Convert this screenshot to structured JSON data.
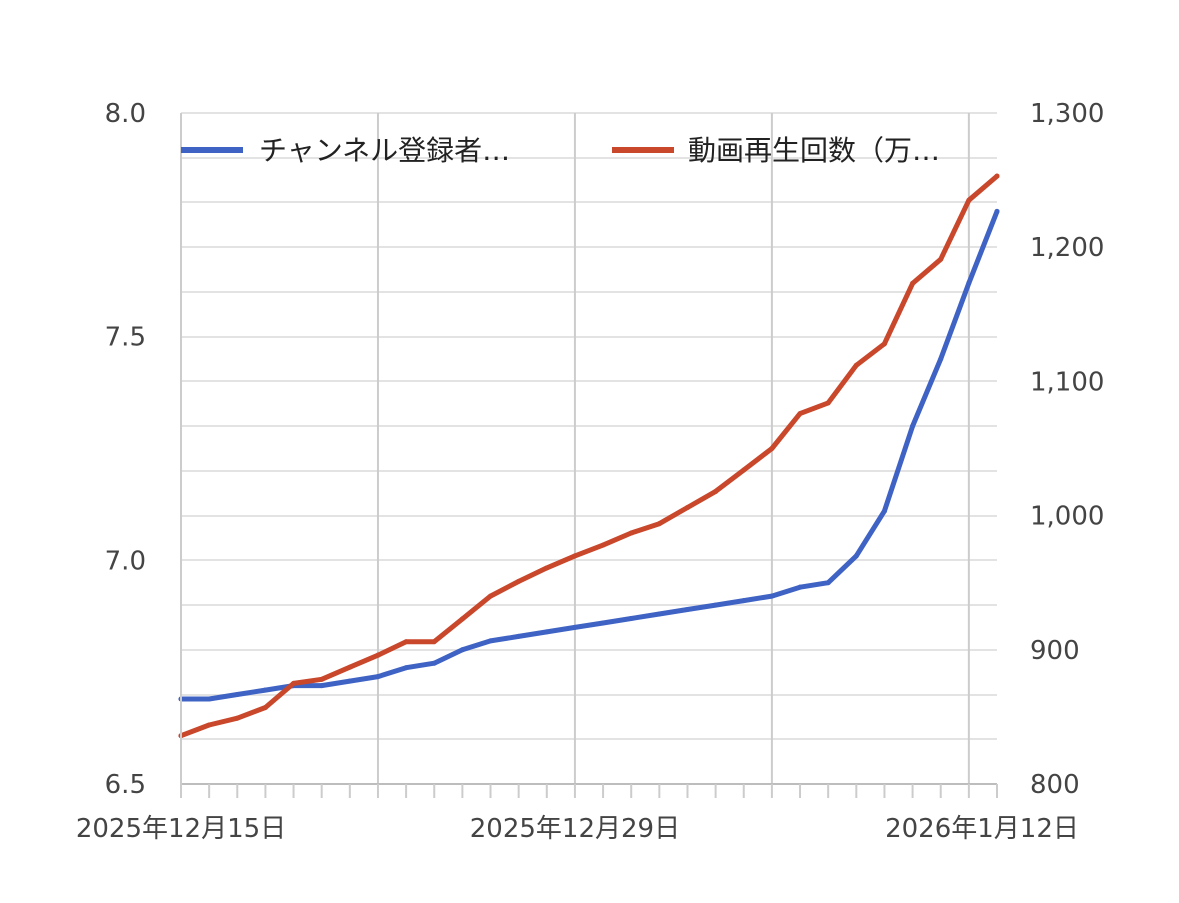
{
  "chart_data": {
    "type": "line",
    "title": "",
    "xlabel": "",
    "ylabel": "",
    "x_axis": {
      "type": "date",
      "range": [
        "2025-12-15",
        "2026-01-13"
      ],
      "tick_labels": [
        {
          "date": "2025-12-15",
          "label": "2025年12月15日"
        },
        {
          "date": "2025-12-29",
          "label": "2025年12月29日"
        },
        {
          "date": "2026-01-12",
          "label": "2026年1月12日"
        }
      ]
    },
    "y_left": {
      "ylim": [
        6.5,
        8.0
      ],
      "tick_labels": [
        "6.5",
        "7.0",
        "7.5",
        "8.0"
      ],
      "tick_values": [
        6.5,
        7.0,
        7.5,
        8.0
      ]
    },
    "y_right": {
      "ylim": [
        800,
        1300
      ],
      "tick_labels": [
        "800",
        "900",
        "1,000",
        "1,100",
        "1,200",
        "1,300"
      ],
      "tick_values": [
        800,
        900,
        1000,
        1100,
        1200,
        1300
      ]
    },
    "grid": true,
    "legend_position": "top",
    "x": [
      "2025-12-15",
      "2025-12-16",
      "2025-12-17",
      "2025-12-18",
      "2025-12-19",
      "2025-12-20",
      "2025-12-21",
      "2025-12-22",
      "2025-12-23",
      "2025-12-24",
      "2025-12-25",
      "2025-12-26",
      "2025-12-27",
      "2025-12-28",
      "2025-12-29",
      "2025-12-30",
      "2025-12-31",
      "2026-01-01",
      "2026-01-02",
      "2026-01-03",
      "2026-01-04",
      "2026-01-05",
      "2026-01-06",
      "2026-01-07",
      "2026-01-08",
      "2026-01-09",
      "2026-01-10",
      "2026-01-11",
      "2026-01-12",
      "2026-01-13"
    ],
    "series": [
      {
        "name": "チャンネル登録者…",
        "axis": "left",
        "color": "#3f63c4",
        "values": [
          6.69,
          6.69,
          6.7,
          6.71,
          6.72,
          6.72,
          6.73,
          6.74,
          6.76,
          6.77,
          6.8,
          6.82,
          6.83,
          6.84,
          6.85,
          6.86,
          6.87,
          6.88,
          6.89,
          6.9,
          6.91,
          6.92,
          6.94,
          6.95,
          7.01,
          7.11,
          7.3,
          7.45,
          7.62,
          7.78
        ]
      },
      {
        "name": "動画再生回数（万…",
        "axis": "right",
        "color": "#c9472b",
        "values": [
          836,
          844,
          849,
          857,
          875,
          878,
          887,
          896,
          906,
          906,
          923,
          940,
          951,
          961,
          970,
          978,
          987,
          994,
          1006,
          1018,
          1034,
          1050,
          1076,
          1084,
          1112,
          1128,
          1173,
          1191,
          1235,
          1253
        ]
      }
    ]
  }
}
